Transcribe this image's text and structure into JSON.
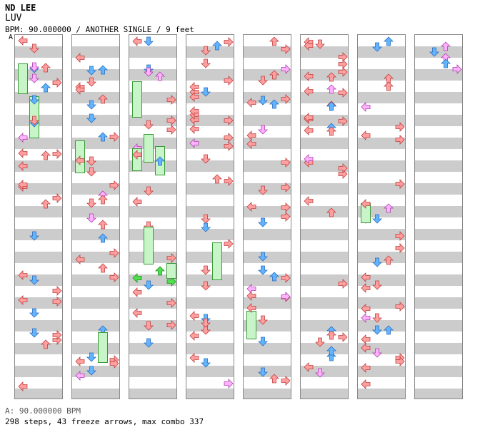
{
  "header": {
    "artist": "ND LEE",
    "title": "LUV",
    "info": "BPM: 90.000000 / ANOTHER SINGLE / 9 feet",
    "bpm_marker": "A"
  },
  "footer": {
    "bpm_line": "A: 90.000000 BPM",
    "stats": "298 steps, 43 freeze arrows, max combo 337"
  },
  "colors": {
    "stripe": "#cccccc",
    "red_arrow": "#ff9f9f",
    "blue_arrow": "#63b4ff",
    "pink_arrow": "#ffb3ff",
    "green_arrow": "#4ee04e",
    "freeze": "#c8f5c8"
  },
  "icons": [
    "left-arrow-icon",
    "down-arrow-icon",
    "up-arrow-icon",
    "right-arrow-icon",
    "freeze-arrow-icon"
  ]
}
